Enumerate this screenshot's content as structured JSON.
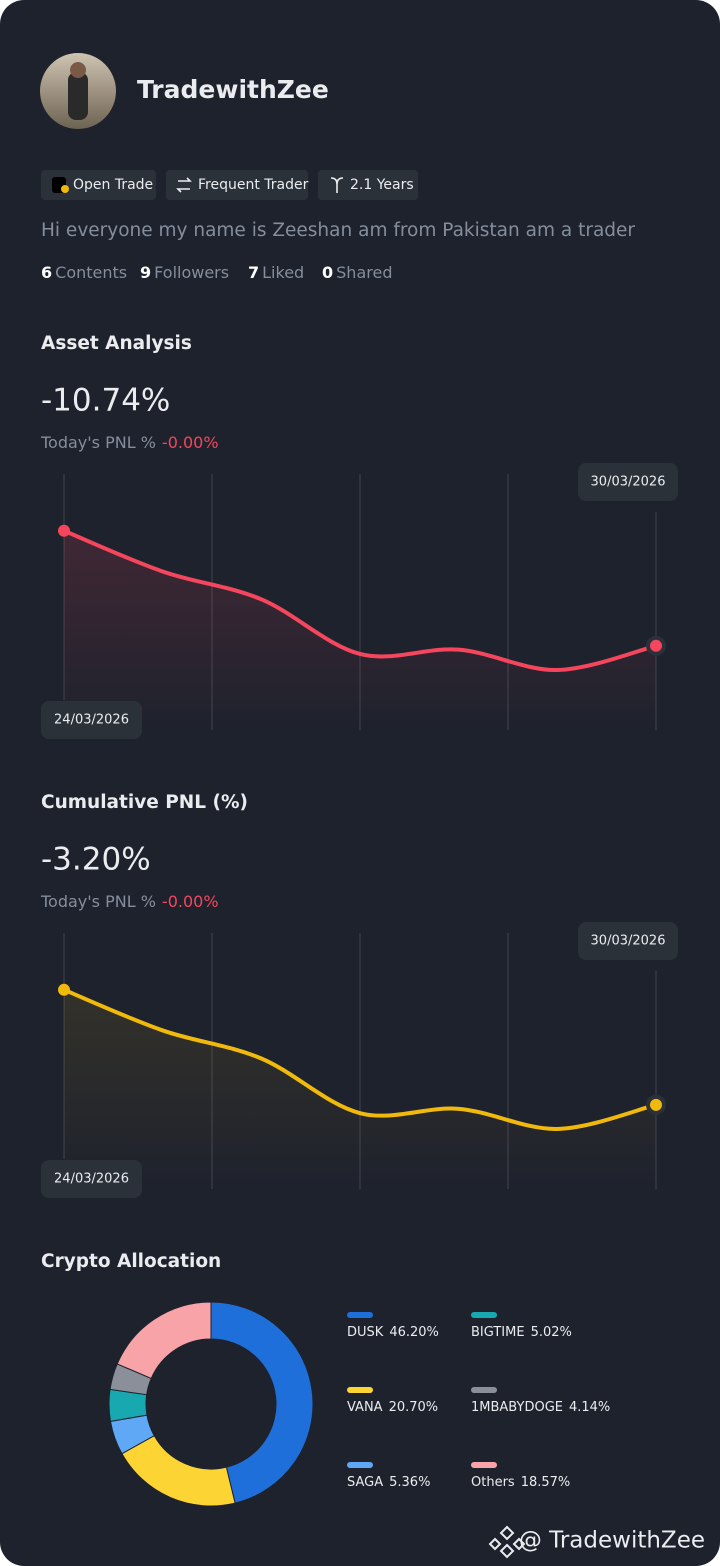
{
  "profile": {
    "name": "TradewithZee",
    "badges": [
      "Open Trade",
      "Frequent Trader",
      "2.1 Years"
    ],
    "bio": "Hi everyone my name is Zeeshan am from Pakistan am a trader",
    "stats": [
      {
        "count": 6,
        "label": "Contents"
      },
      {
        "count": 9,
        "label": "Followers"
      },
      {
        "count": 7,
        "label": "Liked"
      },
      {
        "count": 0,
        "label": "Shared"
      }
    ]
  },
  "chart_data": [
    {
      "type": "line",
      "title": "Asset Analysis",
      "headline": "-10.74%",
      "subtitle": "Today's PNL %",
      "subtitle_value": "-0.00%",
      "categories": [
        "24/03/2026",
        null,
        null,
        null,
        null,
        null,
        "30/03/2026"
      ],
      "values": [
        0,
        -3.8,
        -6.4,
        -11.5,
        -11.1,
        -13.0,
        -10.74
      ],
      "color": "#f6465d",
      "ylim": [
        -18.6,
        5.3
      ]
    },
    {
      "type": "line",
      "title": "Cumulative PNL (%)",
      "headline": "-3.20%",
      "subtitle": "Today's PNL %",
      "subtitle_value": "-0.00%",
      "categories": [
        "24/03/2026",
        null,
        null,
        null,
        null,
        null,
        "30/03/2026"
      ],
      "values": [
        0,
        -1.13,
        -1.91,
        -3.43,
        -3.31,
        -3.87,
        -3.2
      ],
      "color": "#f0b90b",
      "ylim": [
        -5.54,
        1.58
      ]
    },
    {
      "type": "donut",
      "title": "Crypto Allocation",
      "categories": [
        "DUSK",
        "VANA",
        "SAGA",
        "BIGTIME",
        "1MBABYDOGE",
        "Others"
      ],
      "values": [
        46.2,
        20.7,
        5.36,
        5.02,
        4.14,
        18.57
      ],
      "value_labels": [
        "46.20%",
        "20.70%",
        "5.36%",
        "5.02%",
        "4.14%",
        "18.57%"
      ],
      "colors": [
        "#1e6fd9",
        "#fcd535",
        "#5fa8f5",
        "#17a8b0",
        "#8a8f99",
        "#f7a3a8"
      ]
    }
  ],
  "watermark": "@ TradewithZee"
}
